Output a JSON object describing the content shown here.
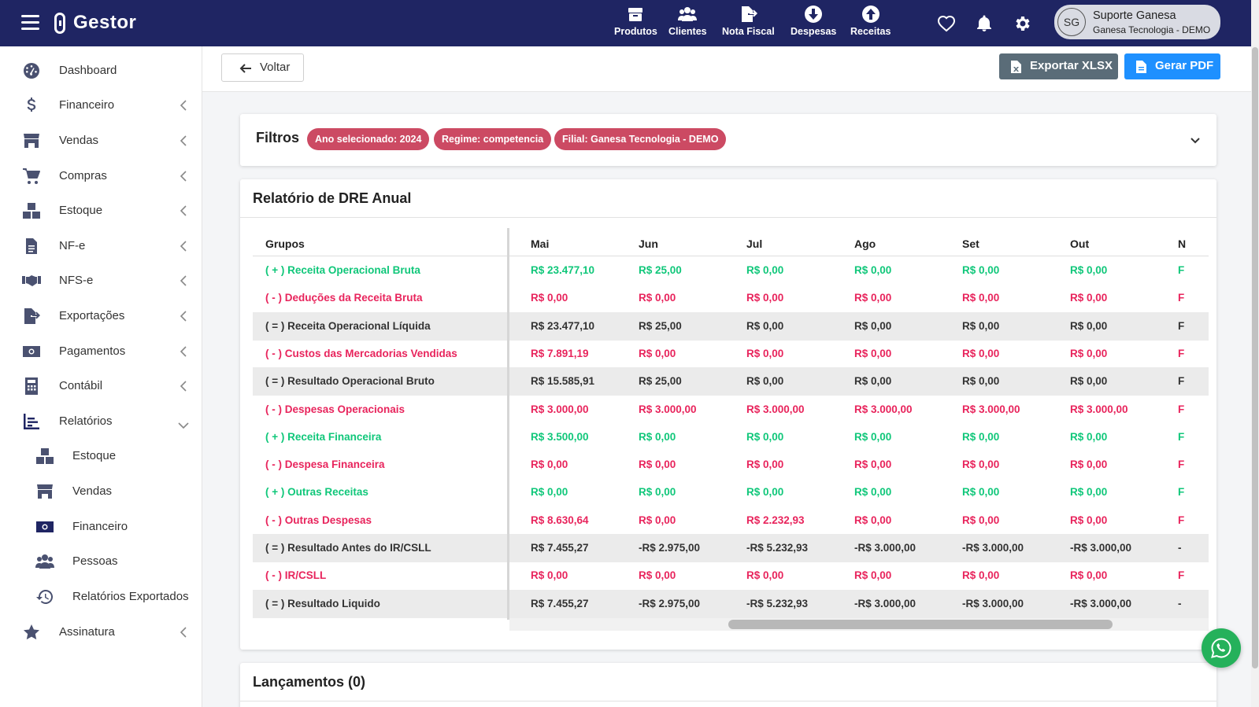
{
  "app": {
    "name": "Gestor"
  },
  "topnav": {
    "items": [
      {
        "label": "Produtos",
        "icon": "box-icon"
      },
      {
        "label": "Clientes",
        "icon": "users-icon"
      },
      {
        "label": "Nota Fiscal",
        "icon": "file-export-icon"
      },
      {
        "label": "Despesas",
        "icon": "arrow-down-circle-icon"
      },
      {
        "label": "Receitas",
        "icon": "arrow-up-circle-icon"
      }
    ],
    "user": {
      "initials": "SG",
      "name": "Suporte Ganesa",
      "company": "Ganesa Tecnologia - DEMO"
    }
  },
  "sidebar": {
    "items": [
      {
        "label": "Dashboard",
        "icon": "dashboard-icon"
      },
      {
        "label": "Financeiro",
        "icon": "dollar-icon"
      },
      {
        "label": "Vendas",
        "icon": "store-icon"
      },
      {
        "label": "Compras",
        "icon": "cart-icon"
      },
      {
        "label": "Estoque",
        "icon": "boxes-icon"
      },
      {
        "label": "NF-e",
        "icon": "document-icon"
      },
      {
        "label": "NFS-e",
        "icon": "handshake-icon"
      },
      {
        "label": "Exportações",
        "icon": "file-export-icon"
      },
      {
        "label": "Pagamentos",
        "icon": "money-icon"
      },
      {
        "label": "Contábil",
        "icon": "calculator-icon"
      },
      {
        "label": "Relatórios",
        "icon": "chart-icon"
      },
      {
        "label": "Assinatura",
        "icon": "star-icon"
      }
    ],
    "subitems": [
      {
        "label": "Estoque",
        "icon": "boxes-icon"
      },
      {
        "label": "Vendas",
        "icon": "store-icon"
      },
      {
        "label": "Financeiro",
        "icon": "money-icon"
      },
      {
        "label": "Pessoas",
        "icon": "users-icon"
      },
      {
        "label": "Relatórios Exportados",
        "icon": "history-icon"
      }
    ]
  },
  "actions": {
    "back": "Voltar",
    "export_xlsx": "Exportar XLSX",
    "pdf": "Gerar PDF"
  },
  "filters": {
    "title": "Filtros",
    "badges": [
      "Ano selecionado: 2024",
      "Regime: competencia",
      "Filial: Ganesa Tecnologia - DEMO"
    ]
  },
  "dre": {
    "title": "Relatório de DRE Anual",
    "group_header": "Grupos",
    "months": [
      "Mai",
      "Jun",
      "Jul",
      "Ago",
      "Set",
      "Out",
      "N"
    ],
    "rows": [
      {
        "label": "( + ) Receita Operacional Bruta",
        "kind": "pos",
        "values": [
          "R$  23.477,10",
          "R$  25,00",
          "R$  0,00",
          "R$  0,00",
          "R$  0,00",
          "R$  0,00",
          "F"
        ]
      },
      {
        "label": "( - ) Deduções da Receita Bruta",
        "kind": "neg",
        "values": [
          "R$  0,00",
          "R$  0,00",
          "R$  0,00",
          "R$  0,00",
          "R$  0,00",
          "R$  0,00",
          "F"
        ]
      },
      {
        "label": "( = ) Receita Operacional Líquida",
        "kind": "neu",
        "values": [
          "R$  23.477,10",
          "R$  25,00",
          "R$  0,00",
          "R$  0,00",
          "R$  0,00",
          "R$  0,00",
          "F"
        ]
      },
      {
        "label": "( - ) Custos das Mercadorias Vendidas",
        "kind": "neg",
        "values": [
          "R$  7.891,19",
          "R$  0,00",
          "R$  0,00",
          "R$  0,00",
          "R$  0,00",
          "R$  0,00",
          "F"
        ]
      },
      {
        "label": "( = ) Resultado Operacional Bruto",
        "kind": "neu",
        "values": [
          "R$  15.585,91",
          "R$  25,00",
          "R$  0,00",
          "R$  0,00",
          "R$  0,00",
          "R$  0,00",
          "F"
        ]
      },
      {
        "label": "( - ) Despesas Operacionais",
        "kind": "neg",
        "values": [
          "R$  3.000,00",
          "R$  3.000,00",
          "R$  3.000,00",
          "R$  3.000,00",
          "R$  3.000,00",
          "R$  3.000,00",
          "F"
        ]
      },
      {
        "label": "( + ) Receita Financeira",
        "kind": "pos",
        "values": [
          "R$  3.500,00",
          "R$  0,00",
          "R$  0,00",
          "R$  0,00",
          "R$  0,00",
          "R$  0,00",
          "F"
        ]
      },
      {
        "label": "( - ) Despesa Financeira",
        "kind": "neg",
        "values": [
          "R$  0,00",
          "R$  0,00",
          "R$  0,00",
          "R$  0,00",
          "R$  0,00",
          "R$  0,00",
          "F"
        ]
      },
      {
        "label": "( + ) Outras Receitas",
        "kind": "pos",
        "values": [
          "R$  0,00",
          "R$  0,00",
          "R$  0,00",
          "R$  0,00",
          "R$  0,00",
          "R$  0,00",
          "F"
        ]
      },
      {
        "label": "( - ) Outras Despesas",
        "kind": "neg",
        "values": [
          "R$  8.630,64",
          "R$  0,00",
          "R$  2.232,93",
          "R$  0,00",
          "R$  0,00",
          "R$  0,00",
          "F"
        ]
      },
      {
        "label": "( = ) Resultado Antes do IR/CSLL",
        "kind": "neu",
        "values": [
          "R$  7.455,27",
          "-R$  2.975,00",
          "-R$  5.232,93",
          "-R$  3.000,00",
          "-R$  3.000,00",
          "-R$  3.000,00",
          "-"
        ]
      },
      {
        "label": "( - ) IR/CSLL",
        "kind": "neg",
        "values": [
          "R$  0,00",
          "R$  0,00",
          "R$  0,00",
          "R$  0,00",
          "R$  0,00",
          "R$  0,00",
          "F"
        ]
      },
      {
        "label": "( = ) Resultado Liquido",
        "kind": "neu",
        "values": [
          "R$  7.455,27",
          "-R$  2.975,00",
          "-R$  5.232,93",
          "-R$  3.000,00",
          "-R$  3.000,00",
          "-R$  3.000,00",
          "-"
        ]
      }
    ]
  },
  "lancamentos": {
    "title": "Lançamentos (0)"
  },
  "colors": {
    "navbar": "#1f2563",
    "positive": "#10c77a",
    "negative": "#e8245c",
    "badge": "#cc4a63",
    "pdf_button": "#1e90ff",
    "xlsx_button": "#5a6c78"
  }
}
